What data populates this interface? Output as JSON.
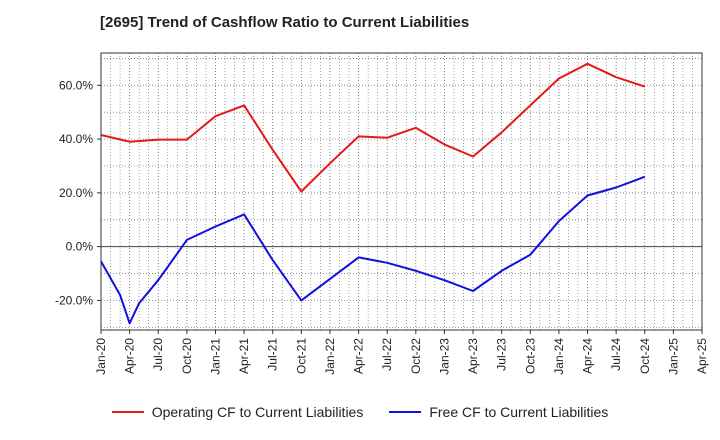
{
  "title": "[2695]  Trend of Cashflow Ratio to Current Liabilities",
  "colors": {
    "operating": "#e31a1c",
    "free": "#1010e0",
    "grid": "#555555",
    "zero": "#444444"
  },
  "chart_data": {
    "type": "line",
    "title": "[2695]  Trend of Cashflow Ratio to Current Liabilities",
    "xlabel": "",
    "ylabel": "",
    "ylim": [
      -31,
      72
    ],
    "yticks": [
      -20,
      0,
      20,
      40,
      60
    ],
    "ytick_labels": [
      "-20.0%",
      "0.0%",
      "20.0%",
      "40.0%",
      "60.0%"
    ],
    "x_tick_labels": [
      "Jan-20",
      "Apr-20",
      "Jul-20",
      "Oct-20",
      "Jan-21",
      "Apr-21",
      "Jul-21",
      "Oct-21",
      "Jan-22",
      "Apr-22",
      "Jul-22",
      "Oct-22",
      "Jan-23",
      "Apr-23",
      "Jul-23",
      "Oct-23",
      "Jan-24",
      "Apr-24",
      "Jul-24",
      "Oct-24",
      "Jan-25",
      "Apr-25"
    ],
    "grid": true,
    "legend_position": "bottom",
    "series": [
      {
        "name": "Operating CF to Current Liabilities",
        "color": "#e31a1c",
        "points": [
          [
            "Jan-20",
            41.5
          ],
          [
            "Apr-20",
            39.0
          ],
          [
            "Jul-20",
            39.8
          ],
          [
            "Oct-20",
            39.8
          ],
          [
            "Jan-21",
            48.5
          ],
          [
            "Apr-21",
            52.5
          ],
          [
            "Jul-21",
            36.0
          ],
          [
            "Oct-21",
            20.5
          ],
          [
            "Jan-22",
            31.0
          ],
          [
            "Apr-22",
            41.0
          ],
          [
            "Jul-22",
            40.5
          ],
          [
            "Oct-22",
            44.2
          ],
          [
            "Jan-23",
            38.0
          ],
          [
            "Apr-23",
            33.5
          ],
          [
            "Jul-23",
            42.5
          ],
          [
            "Oct-23",
            52.5
          ],
          [
            "Jan-24",
            62.5
          ],
          [
            "Apr-24",
            68.0
          ],
          [
            "Jul-24",
            63.0
          ],
          [
            "Oct-24",
            59.5
          ]
        ]
      },
      {
        "name": "Free CF to Current Liabilities",
        "color": "#1010e0",
        "points": [
          [
            "Jan-20",
            -5.5
          ],
          [
            "Mar-20",
            -18.0
          ],
          [
            "Apr-20",
            -28.5
          ],
          [
            "May-20",
            -21.0
          ],
          [
            "Jul-20",
            -12.5
          ],
          [
            "Aug-20",
            -7.5
          ],
          [
            "Oct-20",
            2.5
          ],
          [
            "Jan-21",
            7.5
          ],
          [
            "Apr-21",
            12.0
          ],
          [
            "Jul-21",
            -5.0
          ],
          [
            "Oct-21",
            -20.0
          ],
          [
            "Jan-22",
            -12.0
          ],
          [
            "Apr-22",
            -4.0
          ],
          [
            "Jul-22",
            -6.0
          ],
          [
            "Oct-22",
            -9.0
          ],
          [
            "Jan-23",
            -12.5
          ],
          [
            "Apr-23",
            -16.5
          ],
          [
            "Jul-23",
            -9.0
          ],
          [
            "Oct-23",
            -3.0
          ],
          [
            "Jan-24",
            9.5
          ],
          [
            "Apr-24",
            19.0
          ],
          [
            "Jul-24",
            22.0
          ],
          [
            "Oct-24",
            26.0
          ]
        ]
      }
    ]
  }
}
